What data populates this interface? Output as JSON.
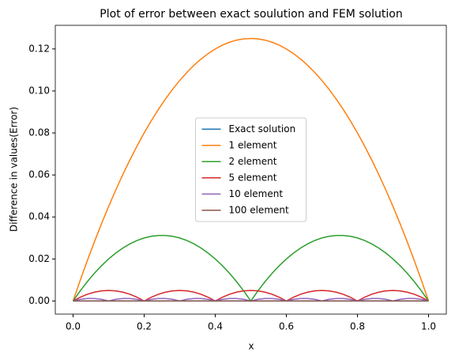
{
  "chart_data": {
    "type": "line",
    "title": "Plot of error between exact soulution and FEM solution",
    "xlabel": "x",
    "ylabel": "Difference in values(Error)",
    "x": [
      0,
      0.02,
      0.04,
      0.06,
      0.08,
      0.1,
      0.12,
      0.14,
      0.16,
      0.18,
      0.2,
      0.22,
      0.24,
      0.26,
      0.28,
      0.3,
      0.32,
      0.34,
      0.36,
      0.38,
      0.4,
      0.42,
      0.44,
      0.46,
      0.48,
      0.5,
      0.52,
      0.54,
      0.56,
      0.58,
      0.6,
      0.62,
      0.64,
      0.66,
      0.68,
      0.7,
      0.72,
      0.74,
      0.76,
      0.78,
      0.8,
      0.82,
      0.84,
      0.86,
      0.88,
      0.9,
      0.92,
      0.94,
      0.96,
      0.98,
      1
    ],
    "series": [
      {
        "name": "Exact solution",
        "color": "#1f77b4",
        "values": [
          0,
          0,
          0,
          0,
          0,
          0,
          0,
          0,
          0,
          0,
          0,
          0,
          0,
          0,
          0,
          0,
          0,
          0,
          0,
          0,
          0,
          0,
          0,
          0,
          0,
          0,
          0,
          0,
          0,
          0,
          0,
          0,
          0,
          0,
          0,
          0,
          0,
          0,
          0,
          0,
          0,
          0,
          0,
          0,
          0,
          0,
          0,
          0,
          0,
          0,
          0
        ]
      },
      {
        "name": "1 element",
        "color": "#ff7f0e",
        "values": [
          0,
          0.0098,
          0.0192,
          0.0282,
          0.0368,
          0.045,
          0.0528,
          0.0602,
          0.0672,
          0.0738,
          0.08,
          0.0858,
          0.0912,
          0.0962,
          0.1008,
          0.105,
          0.1088,
          0.1122,
          0.1152,
          0.1178,
          0.12,
          0.1218,
          0.1232,
          0.1242,
          0.1248,
          0.125,
          0.1248,
          0.1242,
          0.1232,
          0.1218,
          0.12,
          0.1178,
          0.1152,
          0.1122,
          0.1088,
          0.105,
          0.1008,
          0.0962,
          0.0912,
          0.0858,
          0.08,
          0.0738,
          0.0672,
          0.0602,
          0.0528,
          0.045,
          0.0368,
          0.0282,
          0.0192,
          0.0098,
          0
        ]
      },
      {
        "name": "2 element",
        "color": "#2ca02c",
        "values": [
          0,
          0.0048,
          0.0092,
          0.0132,
          0.0168,
          0.02,
          0.0228,
          0.0252,
          0.0272,
          0.0288,
          0.03,
          0.0308,
          0.0312,
          0.0312,
          0.0308,
          0.03,
          0.0288,
          0.0272,
          0.0252,
          0.0228,
          0.02,
          0.0168,
          0.0132,
          0.0092,
          0.0048,
          0,
          0.0048,
          0.0092,
          0.0132,
          0.0168,
          0.02,
          0.0228,
          0.0252,
          0.0272,
          0.0288,
          0.03,
          0.0308,
          0.0312,
          0.0312,
          0.0308,
          0.03,
          0.0288,
          0.0272,
          0.0252,
          0.0228,
          0.02,
          0.0168,
          0.0132,
          0.0092,
          0.0048,
          0
        ]
      },
      {
        "name": "5 element",
        "color": "#d62728",
        "values": [
          0,
          0.0018,
          0.0032,
          0.0042,
          0.0048,
          0.005,
          0.0048,
          0.0042,
          0.0032,
          0.0018,
          0,
          0.0018,
          0.0032,
          0.0042,
          0.0048,
          0.005,
          0.0048,
          0.0042,
          0.0032,
          0.0018,
          0,
          0.0018,
          0.0032,
          0.0042,
          0.0048,
          0.005,
          0.0048,
          0.0042,
          0.0032,
          0.0018,
          0,
          0.0018,
          0.0032,
          0.0042,
          0.0048,
          0.005,
          0.0048,
          0.0042,
          0.0032,
          0.0018,
          0,
          0.0018,
          0.0032,
          0.0042,
          0.0048,
          0.005,
          0.0048,
          0.0042,
          0.0032,
          0.0018,
          0
        ]
      },
      {
        "name": "10 element",
        "color": "#9467bd",
        "values": [
          0,
          0.0008,
          0.0012,
          0.0012,
          0.0008,
          0,
          0.0008,
          0.0012,
          0.0012,
          0.0008,
          0,
          0.0008,
          0.0012,
          0.0012,
          0.0008,
          0,
          0.0008,
          0.0012,
          0.0012,
          0.0008,
          0,
          0.0008,
          0.0012,
          0.0012,
          0.0008,
          0,
          0.0008,
          0.0012,
          0.0012,
          0.0008,
          0,
          0.0008,
          0.0012,
          0.0012,
          0.0008,
          0,
          0.0008,
          0.0012,
          0.0012,
          0.0008,
          0,
          0.0008,
          0.0012,
          0.0012,
          0.0008,
          0,
          0.0008,
          0.0012,
          0.0012,
          0.0008,
          0
        ]
      },
      {
        "name": "100 element",
        "color": "#8c564b",
        "values": [
          0,
          0,
          0,
          0,
          0,
          0,
          0,
          0,
          0,
          0,
          0,
          0,
          0,
          0,
          0,
          0,
          0,
          0,
          0,
          0,
          0,
          0,
          0,
          0,
          0,
          0,
          0,
          0,
          0,
          0,
          0,
          0,
          0,
          0,
          0,
          0,
          0,
          0,
          0,
          0,
          0,
          0,
          0,
          0,
          0,
          0,
          0,
          0,
          0,
          0,
          0
        ]
      }
    ],
    "xlim": [
      -0.05,
      1.05
    ],
    "xticks": [
      {
        "value": 0,
        "label": "0.0"
      },
      0.2,
      0.4,
      0.6,
      0.8,
      {
        "value": 1,
        "label": "1.0"
      }
    ],
    "ylim": [
      -0.00625,
      0.13125
    ],
    "yticks": [
      {
        "value": 0,
        "label": "0.00"
      },
      {
        "value": 0.02,
        "label": "0.02"
      },
      {
        "value": 0.04,
        "label": "0.04"
      },
      {
        "value": 0.06,
        "label": "0.06"
      },
      {
        "value": 0.08,
        "label": "0.08"
      },
      {
        "value": 0.1,
        "label": "0.10"
      },
      {
        "value": 0.12,
        "label": "0.12"
      }
    ],
    "legend": "center",
    "grid": false
  }
}
